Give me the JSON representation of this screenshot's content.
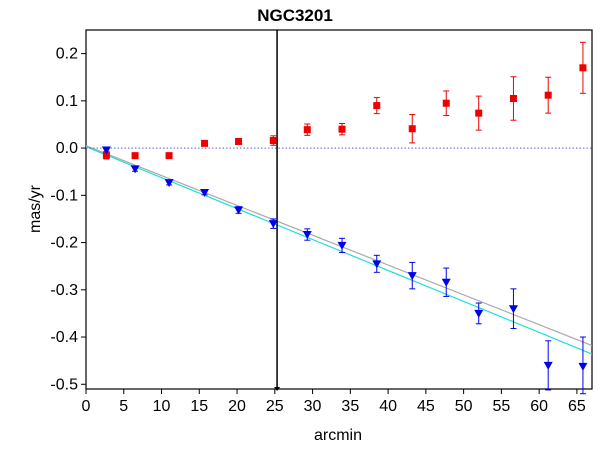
{
  "chart_data": {
    "type": "scatter",
    "title": "NGC3201",
    "xlabel": "arcmin",
    "ylabel": "mas/yr",
    "xlim": [
      0,
      67
    ],
    "ylim": [
      -0.51,
      0.25
    ],
    "x_ticks": [
      0,
      5,
      10,
      15,
      20,
      25,
      30,
      35,
      40,
      45,
      50,
      55,
      60,
      65
    ],
    "x_tick_labels": [
      "0",
      "5",
      "10",
      "15",
      "20",
      "25",
      "30",
      "35",
      "40",
      "45",
      "50",
      "55",
      "60",
      "65"
    ],
    "y_ticks": [
      0.2,
      0.1,
      0.0,
      -0.1,
      -0.2,
      -0.3,
      -0.4,
      -0.5
    ],
    "y_tick_labels": [
      "0.2",
      "0.1",
      "0.0",
      "-0.1",
      "-0.2",
      "-0.3",
      "-0.4",
      "-0.5"
    ],
    "grid": false,
    "series": [
      {
        "marker": "square",
        "color": "#ee0000",
        "points": [
          {
            "x": 2.7,
            "y": -0.015,
            "err": 0.008
          },
          {
            "x": 6.5,
            "y": -0.016,
            "err": 0.005
          },
          {
            "x": 11.0,
            "y": -0.016,
            "err": 0.005
          },
          {
            "x": 15.7,
            "y": 0.01,
            "err": 0.005
          },
          {
            "x": 20.2,
            "y": 0.014,
            "err": 0.005
          },
          {
            "x": 24.8,
            "y": 0.016,
            "err": 0.01
          },
          {
            "x": 29.3,
            "y": 0.039,
            "err": 0.012
          },
          {
            "x": 33.9,
            "y": 0.04,
            "err": 0.012
          },
          {
            "x": 38.5,
            "y": 0.09,
            "err": 0.017
          },
          {
            "x": 43.2,
            "y": 0.041,
            "err": 0.03
          },
          {
            "x": 47.7,
            "y": 0.095,
            "err": 0.026
          },
          {
            "x": 52.0,
            "y": 0.074,
            "err": 0.036
          },
          {
            "x": 56.6,
            "y": 0.105,
            "err": 0.046
          },
          {
            "x": 61.2,
            "y": 0.112,
            "err": 0.038
          },
          {
            "x": 65.8,
            "y": 0.17,
            "err": 0.054
          }
        ]
      },
      {
        "marker": "triangle-down",
        "color": "#0000ee",
        "points": [
          {
            "x": 2.7,
            "y": -0.004,
            "err": 0.005
          },
          {
            "x": 6.5,
            "y": -0.044,
            "err": 0.005
          },
          {
            "x": 11.0,
            "y": -0.073,
            "err": 0.005
          },
          {
            "x": 15.7,
            "y": -0.094,
            "err": 0.005
          },
          {
            "x": 20.2,
            "y": -0.131,
            "err": 0.007
          },
          {
            "x": 24.8,
            "y": -0.16,
            "err": 0.01
          },
          {
            "x": 29.3,
            "y": -0.183,
            "err": 0.012
          },
          {
            "x": 33.9,
            "y": -0.206,
            "err": 0.015
          },
          {
            "x": 38.5,
            "y": -0.245,
            "err": 0.018
          },
          {
            "x": 43.2,
            "y": -0.27,
            "err": 0.028
          },
          {
            "x": 47.7,
            "y": -0.284,
            "err": 0.03
          },
          {
            "x": 52.0,
            "y": -0.35,
            "err": 0.022
          },
          {
            "x": 56.6,
            "y": -0.34,
            "err": 0.042
          },
          {
            "x": 61.2,
            "y": -0.46,
            "err": 0.052
          },
          {
            "x": 65.8,
            "y": -0.462,
            "err": 0.062
          }
        ]
      }
    ],
    "fit_lines": [
      {
        "color": "#aaaaaa",
        "x": [
          0,
          67
        ],
        "y": [
          0.005,
          -0.418
        ]
      },
      {
        "color": "#22dddd",
        "x": [
          0,
          67
        ],
        "y": [
          0.003,
          -0.436
        ]
      }
    ],
    "reference_lines": {
      "horizontal_zero": {
        "y": 0.0,
        "color": "#6666cc",
        "style": "dotted"
      },
      "vertical": {
        "x": 25.3,
        "color": "#000000"
      }
    }
  }
}
